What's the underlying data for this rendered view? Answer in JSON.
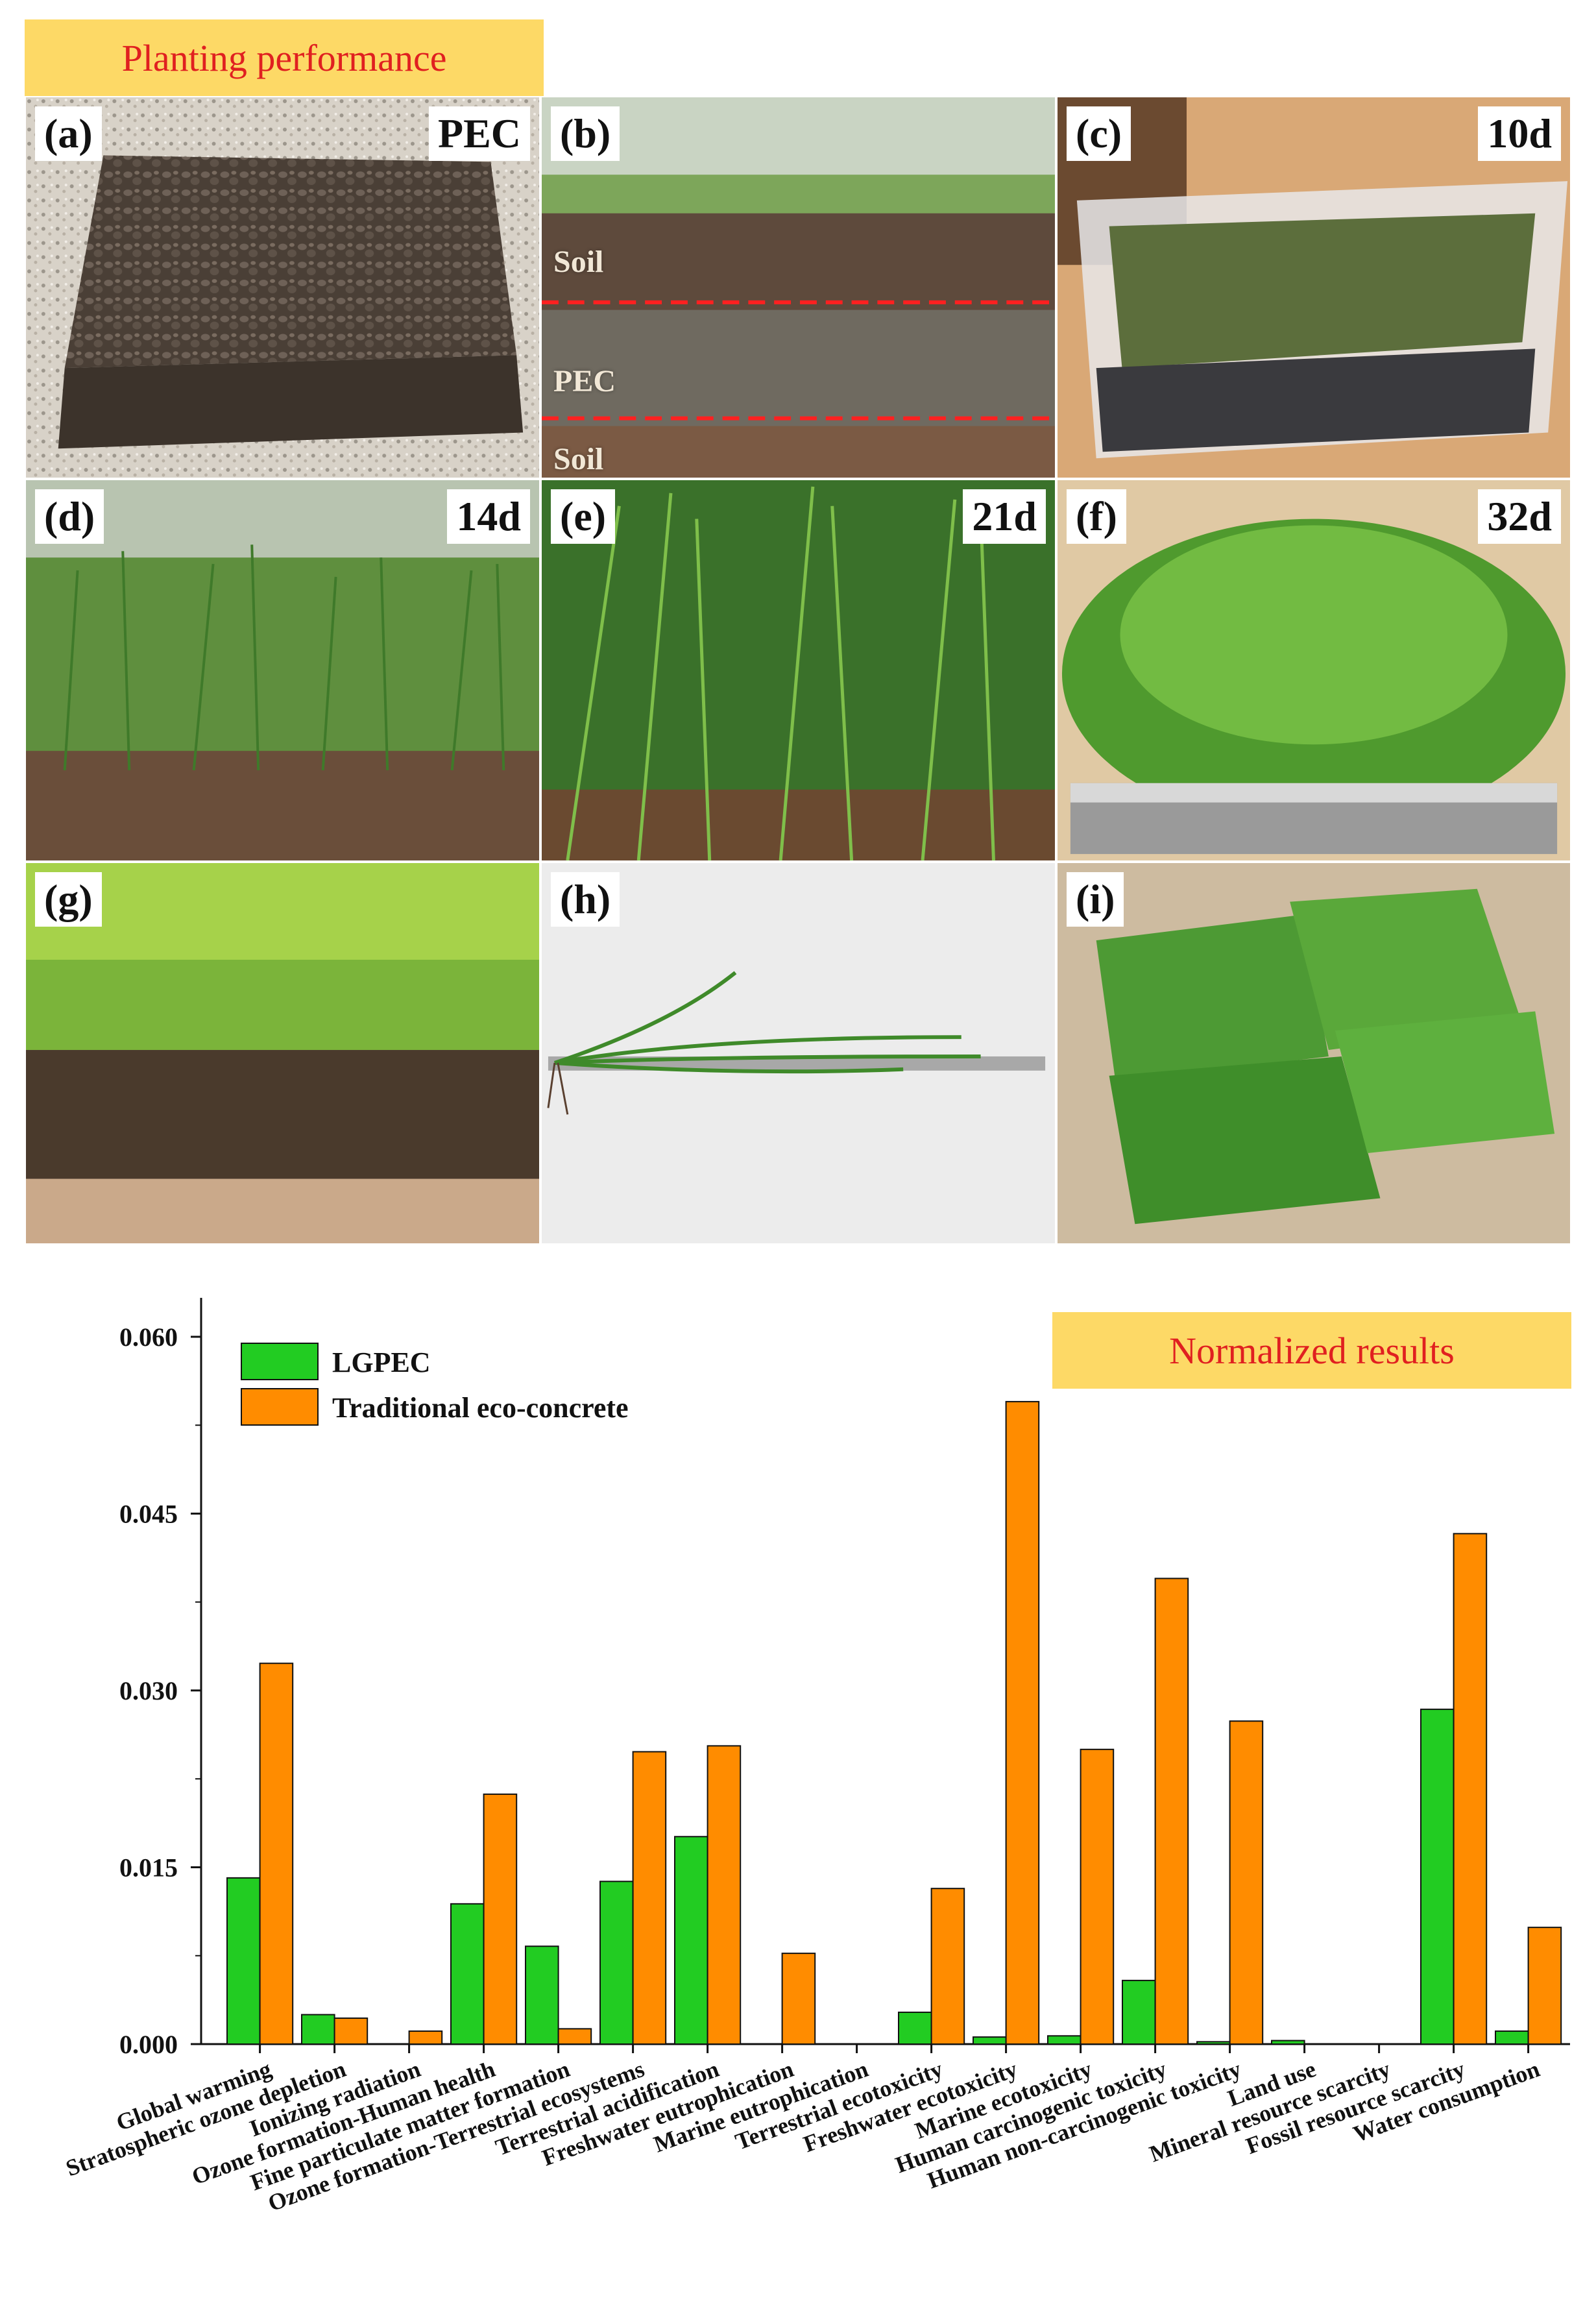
{
  "top_banner": "Planting performance",
  "norm_banner": "Normalized  results",
  "panels": [
    {
      "label": "(a)",
      "corner": "PEC"
    },
    {
      "label": "(b)",
      "corner": "",
      "layers": [
        "Soil",
        "PEC",
        "Soil"
      ]
    },
    {
      "label": "(c)",
      "corner": "10d"
    },
    {
      "label": "(d)",
      "corner": "14d"
    },
    {
      "label": "(e)",
      "corner": "21d"
    },
    {
      "label": "(f)",
      "corner": "32d"
    },
    {
      "label": "(g)",
      "corner": ""
    },
    {
      "label": "(h)",
      "corner": ""
    },
    {
      "label": "(i)",
      "corner": ""
    }
  ],
  "colors": {
    "lgpec": "#22cc22",
    "traditional": "#ff8c00",
    "banner": "#fdd966",
    "banner_text": "#e02020"
  },
  "chart_data": {
    "type": "bar",
    "title": "Normalized  results",
    "xlabel": "",
    "ylabel": "",
    "ylim": [
      0,
      0.06
    ],
    "yticks": [
      "0.000",
      "0.015",
      "0.030",
      "0.045",
      "0.060"
    ],
    "legend_position": "top-left",
    "categories": [
      "Global warming",
      "Stratospheric ozone depletion",
      "Ionizing radiation",
      "Ozone formation-Human health",
      "Fine particulate matter formation",
      "Ozone formation-Terrestrial ecosystems",
      "Terrestrial acidification",
      "Freshwater eutrophication",
      "Marine eutrophication",
      "Terrestrial ecotoxicity",
      "Freshwater ecotoxicity",
      "Marine ecotoxicity",
      "Human carcinogenic toxicity",
      "Human non-carcinogenic toxicity",
      "Land use",
      "Mineral resource scarcity",
      "Fossil resource scarcity",
      "Water consumption"
    ],
    "series": [
      {
        "name": "LGPEC",
        "values": [
          0.0141,
          0.0025,
          0.0,
          0.0119,
          0.0083,
          0.0138,
          0.0176,
          0.0,
          0.0,
          0.0027,
          0.0006,
          0.0007,
          0.0054,
          0.0002,
          0.0003,
          0.0,
          0.0284,
          0.0011
        ]
      },
      {
        "name": "Traditional eco-concrete",
        "values": [
          0.0323,
          0.0022,
          0.0011,
          0.0212,
          0.0013,
          0.0248,
          0.0253,
          0.0077,
          0.0,
          0.0132,
          0.0545,
          0.025,
          0.0395,
          0.0274,
          0.0,
          0.0,
          0.0433,
          0.0099
        ]
      }
    ]
  }
}
